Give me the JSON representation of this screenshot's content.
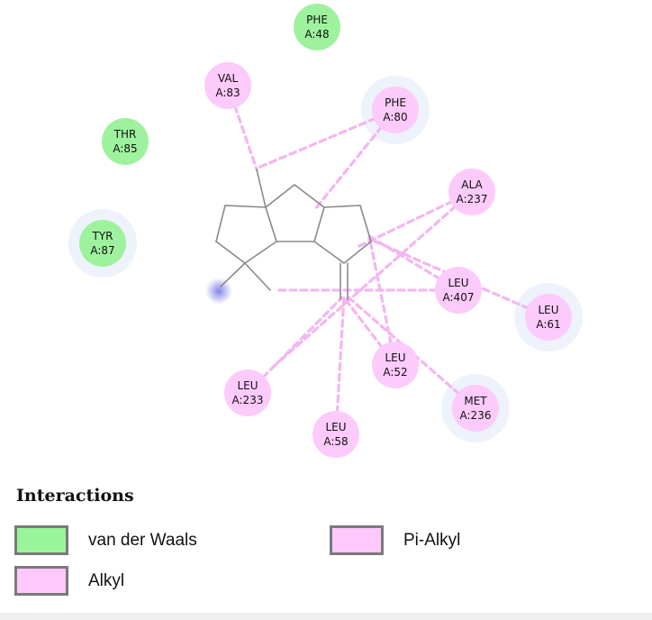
{
  "residues": [
    {
      "name": "PHE",
      "id": "A:48",
      "type": "vdw"
    },
    {
      "name": "VAL",
      "id": "A:83",
      "type": "alkyl"
    },
    {
      "name": "PHE",
      "id": "A:80",
      "type": "alkyl"
    },
    {
      "name": "THR",
      "id": "A:85",
      "type": "vdw"
    },
    {
      "name": "ALA",
      "id": "A:237",
      "type": "alkyl"
    },
    {
      "name": "TYR",
      "id": "A:87",
      "type": "vdw"
    },
    {
      "name": "LEU",
      "id": "A:407",
      "type": "alkyl"
    },
    {
      "name": "LEU",
      "id": "A:61",
      "type": "alkyl"
    },
    {
      "name": "LEU",
      "id": "A:52",
      "type": "alkyl"
    },
    {
      "name": "MET",
      "id": "A:236",
      "type": "alkyl"
    },
    {
      "name": "LEU",
      "id": "A:233",
      "type": "alkyl"
    },
    {
      "name": "LEU",
      "id": "A:58",
      "type": "alkyl"
    }
  ],
  "legend": {
    "title": "Interactions",
    "items": [
      {
        "label": "van der Waals",
        "color": "#99f59a"
      },
      {
        "label": "Pi-Alkyl",
        "color": "#ffc8fd"
      },
      {
        "label": "Alkyl",
        "color": "#ffc8fd"
      }
    ]
  },
  "colors": {
    "vdw_fill": "#9ef29e",
    "alkyl_fill": "#fccafb",
    "interaction_line": "#f3b6f1",
    "ligand_bond": "#8a8a8a",
    "halo": "#e9effa",
    "ligand_glow": "#9a9ae8"
  }
}
